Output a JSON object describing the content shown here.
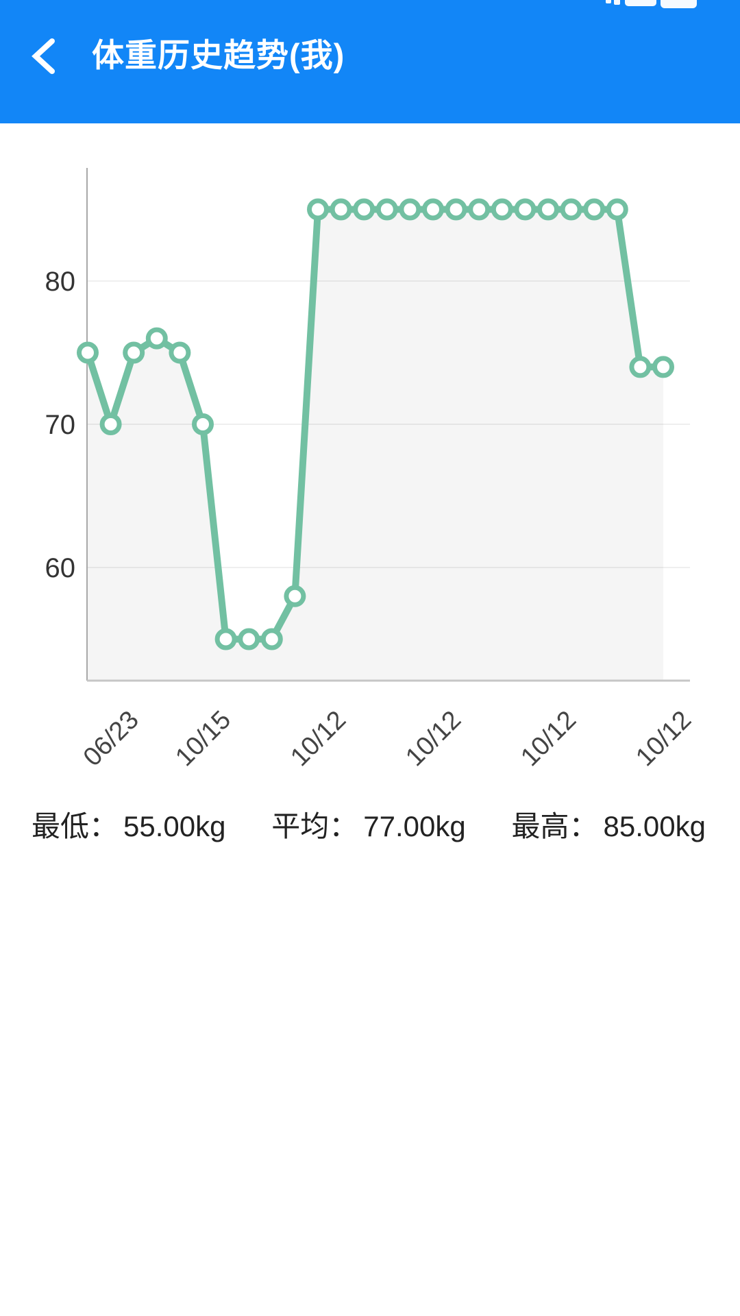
{
  "header": {
    "title": "体重历史趋势(我)"
  },
  "chart_data": {
    "type": "line",
    "title": "",
    "unit": "kg",
    "values": [
      75,
      70,
      75,
      76,
      75,
      70,
      55,
      55,
      55,
      58,
      85,
      85,
      85,
      85,
      85,
      85,
      85,
      85,
      85,
      85,
      85,
      85,
      85,
      85,
      74,
      74
    ],
    "x_tick_labels": [
      "06/23",
      "10/15",
      "10/12",
      "10/12",
      "10/12",
      "10/12"
    ],
    "x_tick_indices": [
      1,
      5,
      10,
      15,
      20,
      25
    ],
    "y_ticks": [
      80,
      70,
      60
    ],
    "ylim": [
      52,
      90
    ],
    "grid": true,
    "legend": "none",
    "line_color": "#72C0A2",
    "marker_fill": "#ffffff",
    "area_color": "rgba(0,0,0,0.04)",
    "grid_color": "#EFEFEF",
    "y_axis_color": "#A8A8A8",
    "x_axis_color": "#C6C6C6",
    "tick_label_color": "#333333",
    "x_label_color": "#444444"
  },
  "stats": {
    "min": {
      "label": "最低：",
      "value": "55.00kg"
    },
    "avg": {
      "label": "平均：",
      "value": "77.00kg"
    },
    "max": {
      "label": "最高：",
      "value": "85.00kg"
    }
  },
  "colors": {
    "header_bg": "#1286F7",
    "header_text": "#FFFFFF",
    "page_bg": "#FFFFFF"
  }
}
